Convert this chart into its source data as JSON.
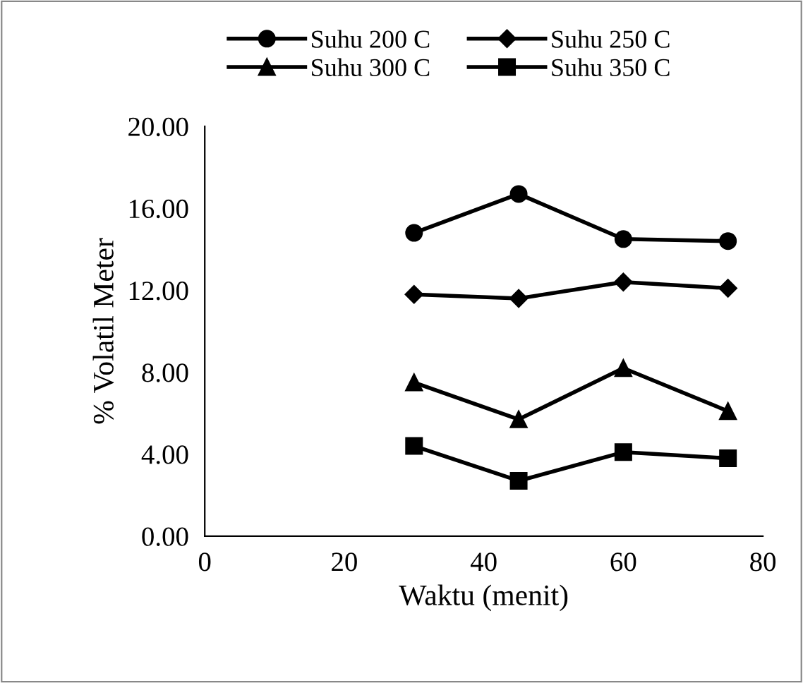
{
  "chart_data": {
    "type": "line",
    "xlabel": "Waktu (menit)",
    "ylabel": "% Volatil Meter",
    "x": [
      30,
      45,
      60,
      75
    ],
    "series": [
      {
        "name": "Suhu 200 C",
        "color": "#000000",
        "marker": "circle",
        "values": [
          14.8,
          16.7,
          14.5,
          14.4
        ]
      },
      {
        "name": "Suhu 250 C",
        "color": "#000000",
        "marker": "diamond",
        "values": [
          11.8,
          11.6,
          12.4,
          12.1
        ]
      },
      {
        "name": "Suhu 300 C",
        "color": "#000000",
        "marker": "triangle",
        "values": [
          7.5,
          5.7,
          8.2,
          6.1
        ]
      },
      {
        "name": "Suhu 350 C",
        "color": "#000000",
        "marker": "square",
        "values": [
          4.4,
          2.7,
          4.1,
          3.8
        ]
      }
    ],
    "xlim": [
      0,
      80
    ],
    "xticks": [
      0,
      20,
      40,
      60,
      80
    ],
    "ylim": [
      0,
      20
    ],
    "yticks": [
      {
        "value": 0,
        "label": "0.00"
      },
      {
        "value": 4,
        "label": "4.00"
      },
      {
        "value": 8,
        "label": "8.00"
      },
      {
        "value": 12,
        "label": "12.00"
      },
      {
        "value": 16,
        "label": "16.00"
      },
      {
        "value": 20,
        "label": "20.00"
      }
    ],
    "grid": false,
    "legend": "top",
    "line_style": "solid"
  }
}
